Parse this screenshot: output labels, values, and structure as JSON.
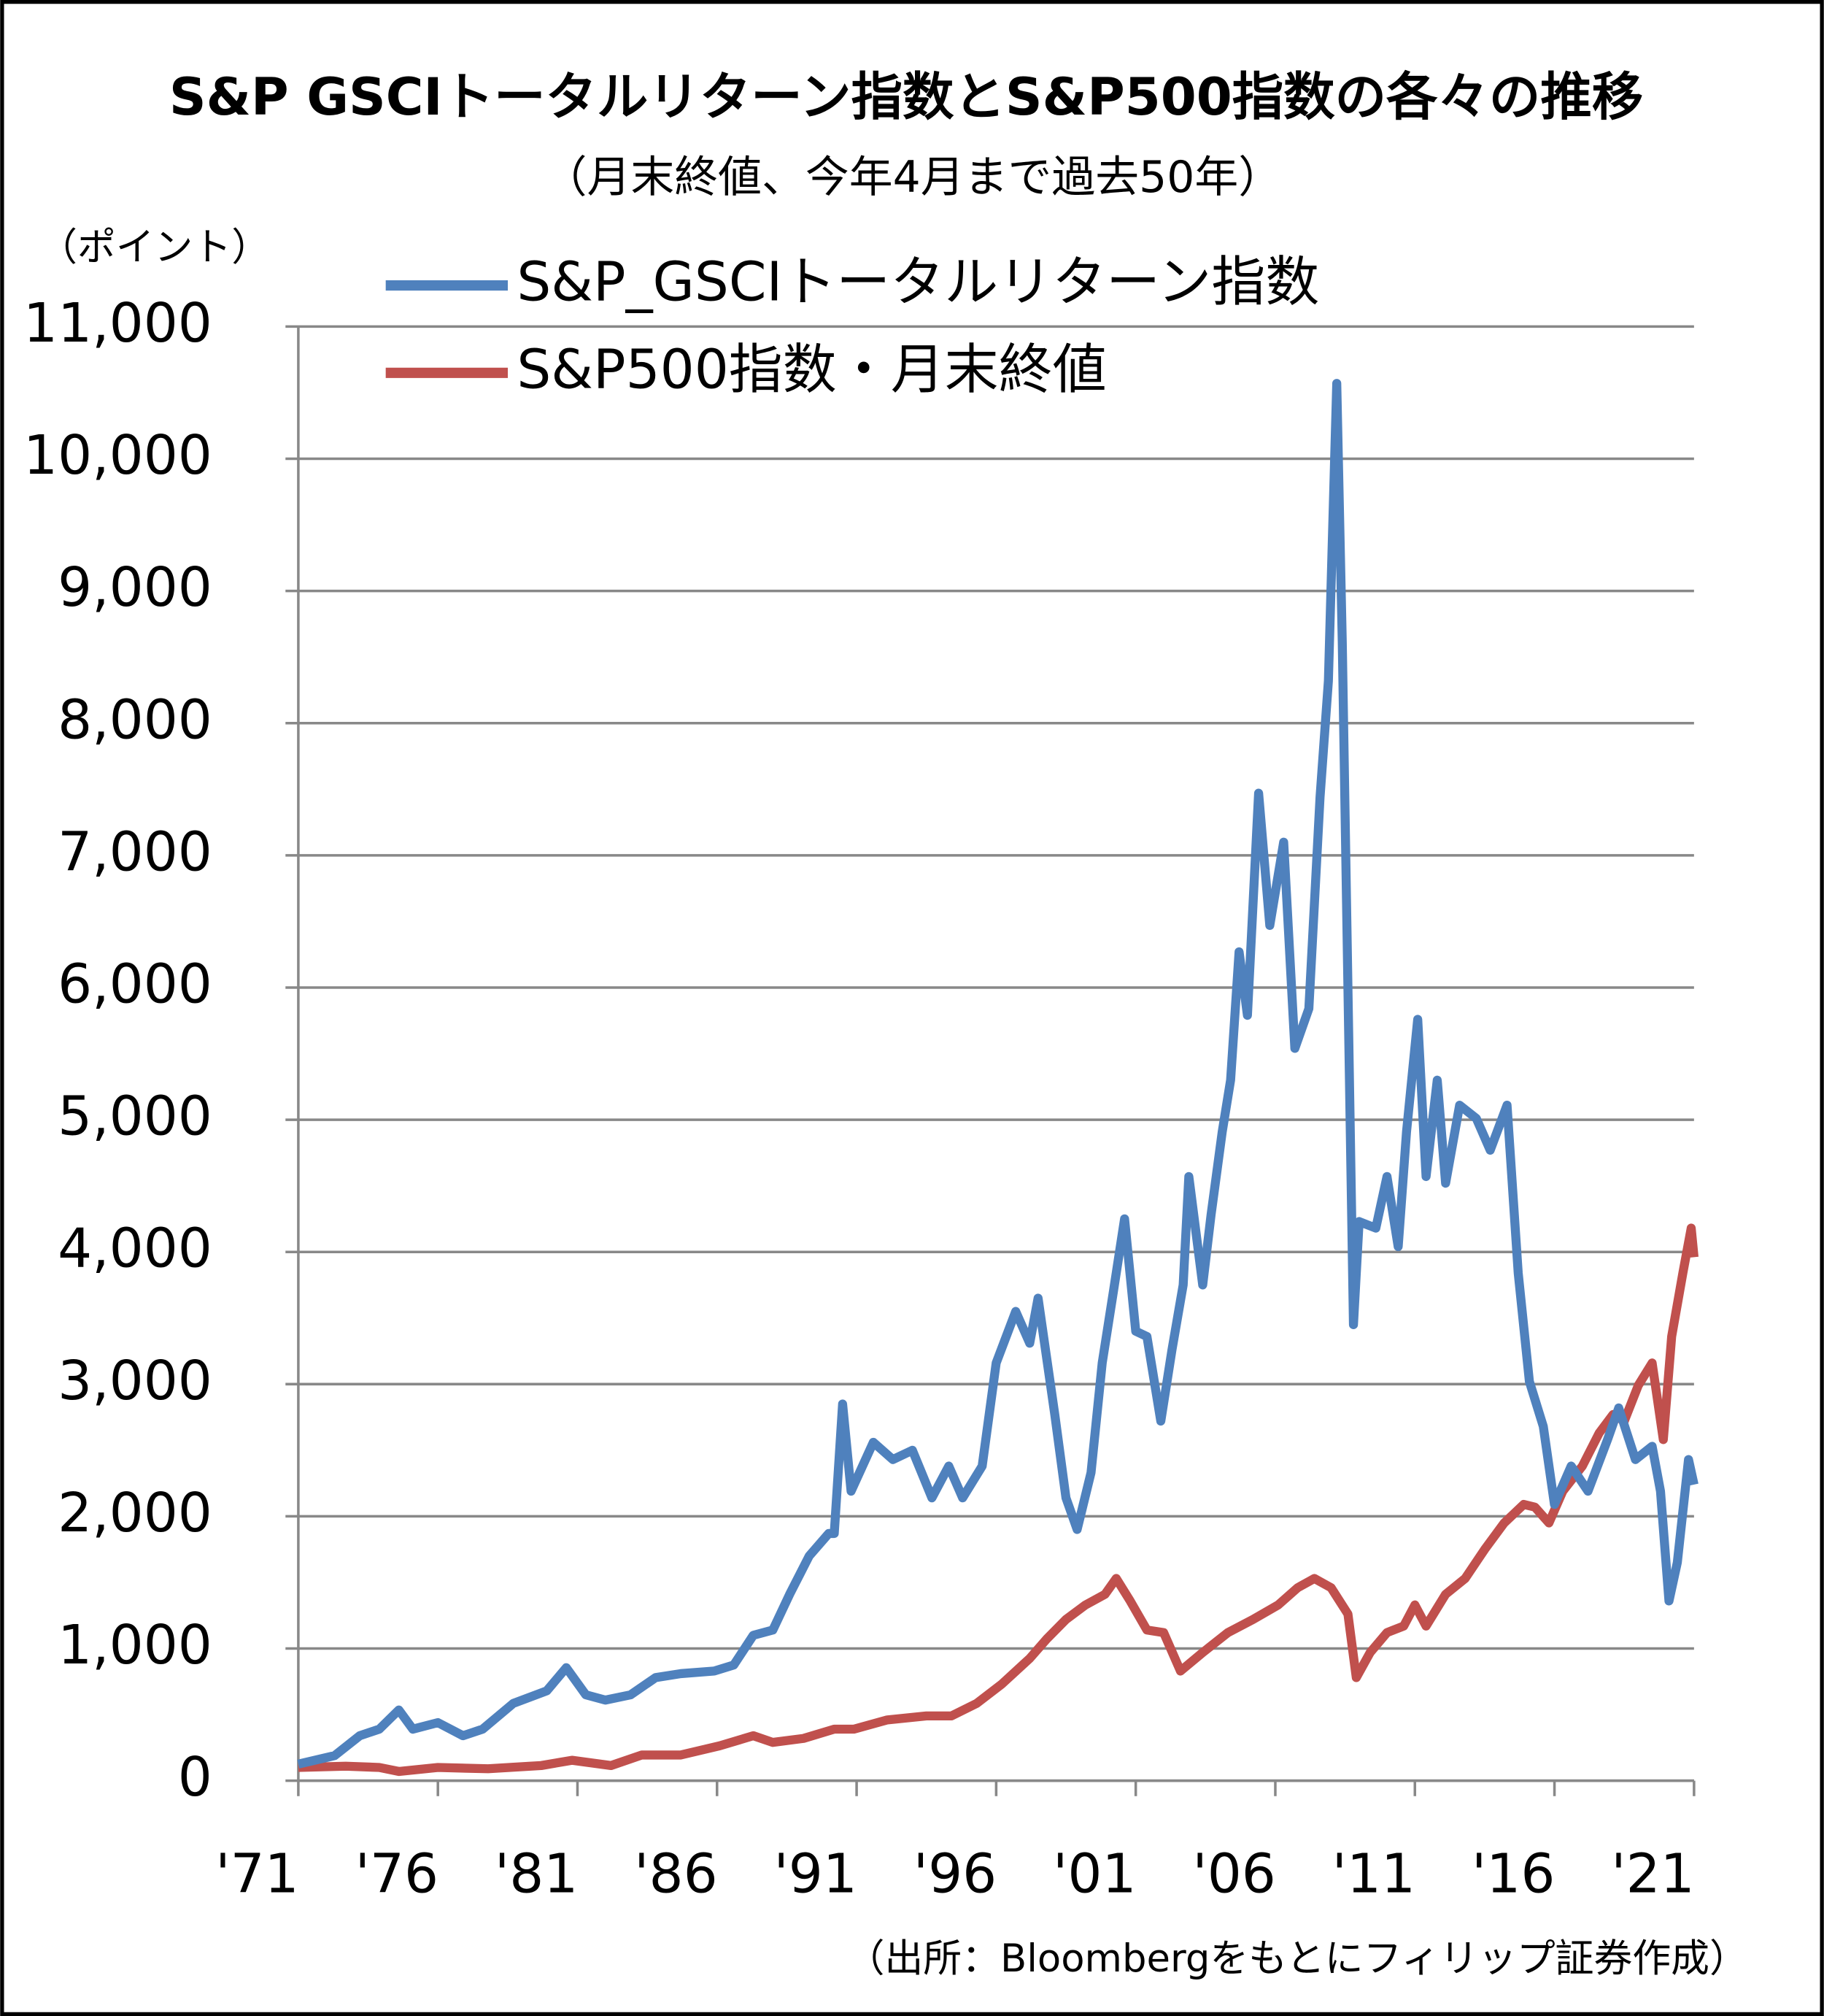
{
  "chart_data": {
    "type": "line",
    "title": "S&P GSCIトータルリターン指数とS&P500指数の各々の推移",
    "subtitle": "（月末終値、今年4月まで過去50年）",
    "y_axis_label": "（ポイント）",
    "source": "（出所：Bloombergをもとにフィリップ証券作成）",
    "xlim": [
      1971,
      2021
    ],
    "xticks": [
      {
        "value": 1971,
        "label": "'71"
      },
      {
        "value": 1976,
        "label": "'76"
      },
      {
        "value": 1981,
        "label": "'81"
      },
      {
        "value": 1986,
        "label": "'86"
      },
      {
        "value": 1991,
        "label": "'91"
      },
      {
        "value": 1996,
        "label": "'96"
      },
      {
        "value": 2001,
        "label": "'01"
      },
      {
        "value": 2006,
        "label": "'06"
      },
      {
        "value": 2011,
        "label": "'11"
      },
      {
        "value": 2016,
        "label": "'16"
      },
      {
        "value": 2021,
        "label": "'21"
      }
    ],
    "ylim": [
      0,
      11000
    ],
    "yticks": [
      0,
      {
        "value": 1000,
        "label": "1,000"
      },
      {
        "value": 2000,
        "label": "2,000"
      },
      {
        "value": 3000,
        "label": "3,000"
      },
      {
        "value": 4000,
        "label": "4,000"
      },
      {
        "value": 5000,
        "label": "5,000"
      },
      {
        "value": 6000,
        "label": "6,000"
      },
      {
        "value": 7000,
        "label": "7,000"
      },
      {
        "value": 8000,
        "label": "8,000"
      },
      {
        "value": 9000,
        "label": "9,000"
      },
      {
        "value": 10000,
        "label": "10,000"
      },
      {
        "value": 11000,
        "label": "11,000"
      }
    ],
    "grid": true,
    "series": [
      {
        "name": "S&P_GSCIトータルリターン指数",
        "color": "#4f81bd",
        "x": [
          1971,
          1972.3,
          1973.2,
          1973.9,
          1974.6,
          1975.1,
          1976.0,
          1976.9,
          1977.6,
          1978.7,
          1979.9,
          1980.6,
          1981.3,
          1982.0,
          1982.9,
          1983.8,
          1984.7,
          1985.9,
          1986.6,
          1987.3,
          1988.0,
          1988.6,
          1989.3,
          1990.0,
          1990.2,
          1990.5,
          1990.8,
          1991.6,
          1992.3,
          1993.0,
          1993.7,
          1994.3,
          1994.8,
          1995.5,
          1996.0,
          1996.7,
          1997.2,
          1997.5,
          1998.1,
          1998.5,
          1998.9,
          1999.4,
          1999.8,
          2000.2,
          2000.6,
          2001.0,
          2001.4,
          2001.9,
          2002.3,
          2002.7,
          2002.9,
          2003.4,
          2003.7,
          2004.1,
          2004.4,
          2004.7,
          2005.0,
          2005.4,
          2005.8,
          2006.3,
          2006.7,
          2007.2,
          2007.6,
          2007.9,
          2008.2,
          2008.4,
          2008.8,
          2009.0,
          2009.6,
          2010.0,
          2010.4,
          2010.7,
          2011.1,
          2011.4,
          2011.8,
          2012.1,
          2012.6,
          2013.2,
          2013.7,
          2014.3,
          2014.7,
          2015.1,
          2015.6,
          2016.0,
          2016.6,
          2017.2,
          2017.9,
          2018.3,
          2018.9,
          2019.5,
          2019.8,
          2020.1,
          2020.4,
          2020.8,
          2021
        ],
        "values": [
          125,
          190,
          340,
          390,
          535,
          390,
          440,
          340,
          390,
          585,
          680,
          855,
          650,
          610,
          650,
          780,
          810,
          830,
          875,
          1100,
          1140,
          1410,
          1700,
          1870,
          1870,
          2850,
          2190,
          2560,
          2430,
          2500,
          2140,
          2380,
          2140,
          2380,
          3160,
          3550,
          3310,
          3650,
          2770,
          2140,
          1900,
          2330,
          3160,
          3700,
          4250,
          3400,
          3360,
          2720,
          3260,
          3750,
          4570,
          3750,
          4280,
          4910,
          5300,
          6270,
          5790,
          7470,
          6470,
          7100,
          5540,
          5840,
          7440,
          8320,
          10570,
          8610,
          3450,
          4230,
          4180,
          4570,
          4040,
          4910,
          5760,
          4570,
          5300,
          4520,
          5110,
          5010,
          4770,
          5110,
          3840,
          3020,
          2680,
          2090,
          2380,
          2190,
          2580,
          2820,
          2430,
          2530,
          2190,
          1360,
          1650,
          2430,
          2240
        ]
      },
      {
        "name": "S&P500指数・月末終値",
        "color": "#c0504d",
        "x": [
          1971,
          1972.7,
          1973.9,
          1974.6,
          1976.0,
          1977.8,
          1979.7,
          1980.8,
          1982.2,
          1983.3,
          1984.7,
          1986.1,
          1987.3,
          1988.0,
          1989.1,
          1990.2,
          1990.9,
          1992.1,
          1993.5,
          1994.4,
          1995.3,
          1996.2,
          1997.2,
          1997.8,
          1998.5,
          1999.2,
          1999.9,
          2000.3,
          2000.8,
          2001.4,
          2002.0,
          2002.6,
          2003.4,
          2004.3,
          2005.2,
          2006.1,
          2006.8,
          2007.4,
          2008.0,
          2008.6,
          2008.9,
          2009.4,
          2010.0,
          2010.6,
          2011.0,
          2011.4,
          2012.1,
          2012.8,
          2013.5,
          2014.2,
          2014.9,
          2015.3,
          2015.8,
          2016.3,
          2017.0,
          2017.6,
          2018.1,
          2018.5,
          2019.0,
          2019.5,
          2019.9,
          2020.2,
          2020.6,
          2020.9,
          2021
        ],
        "values": [
          100,
          110,
          100,
          70,
          100,
          90,
          115,
          155,
          115,
          195,
          195,
          265,
          340,
          290,
          320,
          390,
          390,
          460,
          490,
          490,
          585,
          730,
          925,
          1070,
          1220,
          1330,
          1410,
          1530,
          1360,
          1140,
          1120,
          830,
          970,
          1120,
          1220,
          1330,
          1460,
          1530,
          1460,
          1260,
          780,
          970,
          1120,
          1170,
          1330,
          1170,
          1410,
          1530,
          1750,
          1950,
          2090,
          2070,
          1950,
          2190,
          2380,
          2630,
          2770,
          2720,
          2990,
          3160,
          2580,
          3360,
          3840,
          4180,
          3960
        ]
      }
    ]
  }
}
